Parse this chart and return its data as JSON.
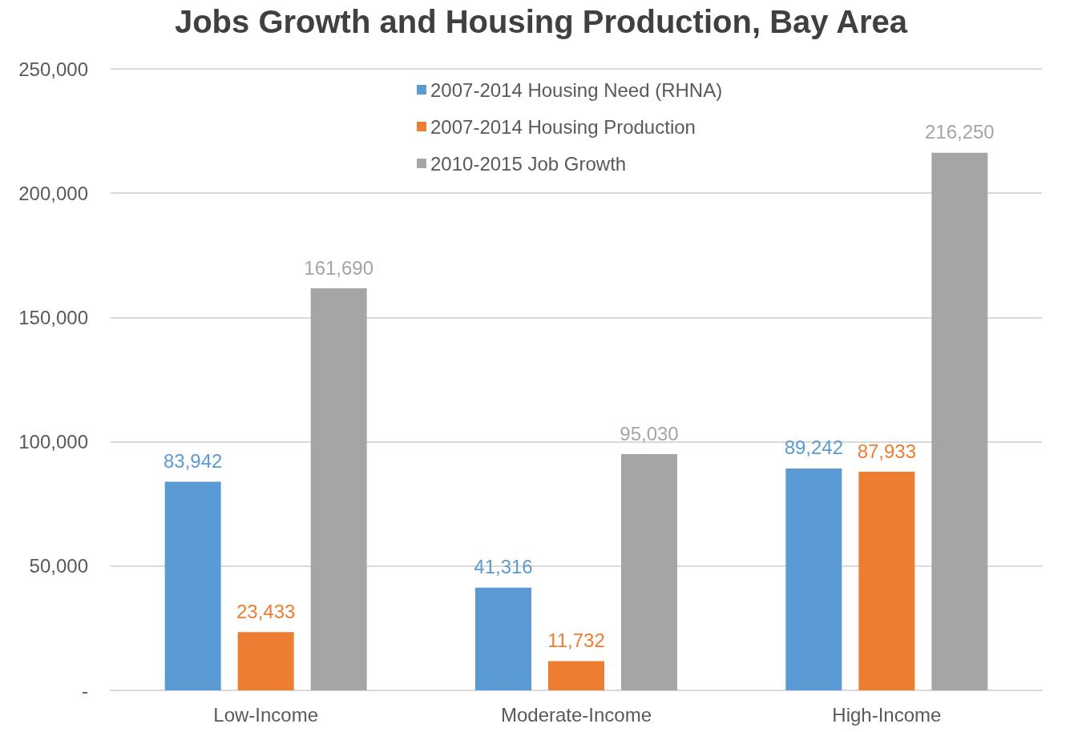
{
  "chart_data": {
    "type": "bar",
    "title": "Jobs Growth and Housing Production, Bay Area",
    "categories": [
      "Low-Income",
      "Moderate-Income",
      "High-Income"
    ],
    "series": [
      {
        "name": "2007-2014 Housing Need (RHNA)",
        "color": "#5b9bd5",
        "values": [
          83942,
          41316,
          89242
        ],
        "value_labels": [
          "83,942",
          "41,316",
          "89,242"
        ]
      },
      {
        "name": "2007-2014 Housing Production",
        "color": "#ed7d31",
        "values": [
          23433,
          11732,
          87933
        ],
        "value_labels": [
          "23,433",
          "11,732",
          "87,933"
        ]
      },
      {
        "name": "2010-2015 Job Growth",
        "color": "#a5a5a5",
        "values": [
          161690,
          95030,
          216250
        ],
        "value_labels": [
          "161,690",
          "95,030",
          "216,250"
        ]
      }
    ],
    "ylim": [
      0,
      250000
    ],
    "yticks": [
      {
        "value": 0,
        "label": "-"
      },
      {
        "value": 50000,
        "label": "50,000"
      },
      {
        "value": 100000,
        "label": "100,000"
      },
      {
        "value": 150000,
        "label": "150,000"
      },
      {
        "value": 200000,
        "label": "200,000"
      },
      {
        "value": 250000,
        "label": "250,000"
      }
    ],
    "grid": "y",
    "legend": "top"
  }
}
